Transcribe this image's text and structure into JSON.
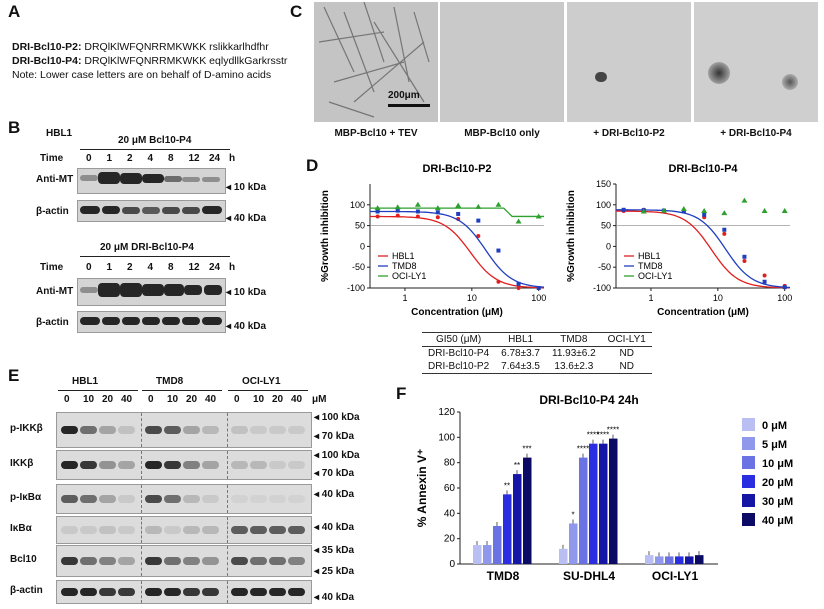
{
  "panels": {
    "A": "A",
    "B": "B",
    "C": "C",
    "D": "D",
    "E": "E",
    "F": "F"
  },
  "panelA": {
    "line1_label": "DRI-Bcl10-P2:",
    "line1_seq": "DRQlKlWFQNRRMKWKK rslikkarlhdfhr",
    "line2_label": "DRI-Bcl10-P4:",
    "line2_seq": "DRQlKlWFQNRRMKWKK eqlydllkGarkrsstr",
    "note": "Note: Lower case letters are on behalf of D-amino acids"
  },
  "panelB": {
    "cell": "HBL1",
    "title1": "20 μM Bcl10-P4",
    "title2": "20 μM DRI-Bcl10-P4",
    "time_label": "Time",
    "unit": "h",
    "times": [
      "0",
      "1",
      "2",
      "4",
      "8",
      "12",
      "24"
    ],
    "row1": "Anti-MT",
    "row2": "β-actin",
    "mw1": "10 kDa",
    "mw2": "40 kDa"
  },
  "panelC": {
    "scale": "200μm",
    "captions": [
      "MBP-Bcl10 + TEV",
      "MBP-Bcl10 only",
      "+ DRI-Bcl10-P2",
      "+ DRI-Bcl10-P4"
    ]
  },
  "chart_data": [
    {
      "type": "scatter",
      "title": "DRI-Bcl10-P2",
      "xlabel": "Concentration (μM)",
      "ylabel": "%Growth inhibition",
      "xscale": "log",
      "xticks": [
        "1",
        "10",
        "100"
      ],
      "yticks": [
        "100",
        "50",
        "0",
        "-50",
        "-100"
      ],
      "ylim": [
        -100,
        150
      ],
      "xlim": [
        0.3,
        120
      ],
      "legend": [
        "HBL1",
        "TMD8",
        "OCI-LY1"
      ],
      "legend_position": "bottom-left",
      "reference_line": 50,
      "series": [
        {
          "name": "HBL1",
          "color": "#e02020",
          "x": [
            0.39,
            0.78,
            1.56,
            3.1,
            6.25,
            12.5,
            25,
            50,
            100
          ],
          "y": [
            72,
            74,
            72,
            70,
            66,
            25,
            -85,
            -100,
            -100
          ],
          "ic50": 9.5
        },
        {
          "name": "TMD8",
          "color": "#1f3fbf",
          "x": [
            0.39,
            0.78,
            1.56,
            3.1,
            6.25,
            12.5,
            25,
            50,
            100
          ],
          "y": [
            84,
            86,
            84,
            82,
            78,
            62,
            -10,
            -90,
            -100
          ],
          "ic50": 16
        },
        {
          "name": "OCI-LY1",
          "color": "#2ea02e",
          "x": [
            0.39,
            0.78,
            1.56,
            3.1,
            6.25,
            12.5,
            25,
            50,
            100
          ],
          "y": [
            92,
            94,
            100,
            92,
            98,
            95,
            100,
            60,
            72
          ],
          "fit": "flat"
        }
      ]
    },
    {
      "type": "scatter",
      "title": "DRI-Bcl10-P4",
      "xlabel": "Concentration (μM)",
      "ylabel": "%Growth inhibition",
      "xscale": "log",
      "xticks": [
        "1",
        "10",
        "100"
      ],
      "yticks": [
        "150",
        "100",
        "50",
        "0",
        "-50",
        "-100"
      ],
      "ylim": [
        -100,
        150
      ],
      "xlim": [
        0.3,
        120
      ],
      "legend": [
        "HBL1",
        "TMD8",
        "OCI-LY1"
      ],
      "legend_position": "bottom-left",
      "reference_line": 50,
      "series": [
        {
          "name": "HBL1",
          "color": "#e02020",
          "x": [
            0.39,
            0.78,
            1.56,
            3.1,
            6.25,
            12.5,
            25,
            50,
            100
          ],
          "y": [
            85,
            88,
            86,
            84,
            70,
            30,
            -35,
            -70,
            -95
          ],
          "ic50": 8
        },
        {
          "name": "TMD8",
          "color": "#1f3fbf",
          "x": [
            0.39,
            0.78,
            1.56,
            3.1,
            6.25,
            12.5,
            25,
            50,
            100
          ],
          "y": [
            88,
            87,
            86,
            84,
            76,
            40,
            -25,
            -85,
            -98
          ],
          "ic50": 13
        },
        {
          "name": "OCI-LY1",
          "color": "#2ea02e",
          "x": [
            0.78,
            1.56,
            3.1,
            6.25,
            12.5,
            25,
            50,
            100
          ],
          "y": [
            84,
            86,
            90,
            85,
            80,
            110,
            85,
            85
          ],
          "fit": "none"
        }
      ]
    },
    {
      "type": "bar",
      "title": "DRI-Bcl10-P4 24h",
      "ylabel": "% Annexin V⁺",
      "yticks": [
        "0",
        "20",
        "40",
        "60",
        "80",
        "100",
        "120"
      ],
      "ylim": [
        0,
        120
      ],
      "categories": [
        "TMD8",
        "SU-DHL4",
        "OCI-LY1"
      ],
      "legend_position": "right",
      "series": [
        {
          "name": "0 μM",
          "color": "#b9bff2",
          "values": [
            15,
            12,
            7
          ],
          "significance": [
            "",
            "",
            ""
          ]
        },
        {
          "name": "5 μM",
          "color": "#8f98ea",
          "values": [
            15,
            32,
            6
          ],
          "significance": [
            "",
            "*",
            ""
          ]
        },
        {
          "name": "10 μM",
          "color": "#6b73e4",
          "values": [
            30,
            84,
            6
          ],
          "significance": [
            "",
            "****",
            ""
          ]
        },
        {
          "name": "20 μM",
          "color": "#2a2ee0",
          "values": [
            55,
            95,
            6
          ],
          "significance": [
            "**",
            "****",
            ""
          ]
        },
        {
          "name": "30 μM",
          "color": "#1515a6",
          "values": [
            71,
            95,
            6
          ],
          "significance": [
            "**",
            "****",
            ""
          ]
        },
        {
          "name": "40 μM",
          "color": "#0b0b66",
          "values": [
            84,
            99,
            7
          ],
          "significance": [
            "***",
            "****",
            ""
          ]
        }
      ]
    }
  ],
  "gi50_table": {
    "header": [
      "GI50 (μM)",
      "HBL1",
      "TMD8",
      "OCI-LY1"
    ],
    "rows": [
      [
        "DRI-Bcl10-P4",
        "6.78±3.7",
        "11.93±6.2",
        "ND"
      ],
      [
        "DRI-Bcl10-P2",
        "7.64±3.5",
        "13.6±2.3",
        "ND"
      ]
    ]
  },
  "panelE": {
    "cells": [
      "HBL1",
      "TMD8",
      "OCI-LY1"
    ],
    "doses": [
      "0",
      "10",
      "20",
      "40"
    ],
    "unit": "μM",
    "rows": [
      "p-IKKβ",
      "IKKβ",
      "p-IκBα",
      "IκBα",
      "Bcl10",
      "β-actin"
    ],
    "mw": [
      "100 kDa",
      "70 kDa",
      "100 kDa",
      "70 kDa",
      "40 kDa",
      "40 kDa",
      "35 kDa",
      "25 kDa",
      "40 kDa"
    ]
  }
}
